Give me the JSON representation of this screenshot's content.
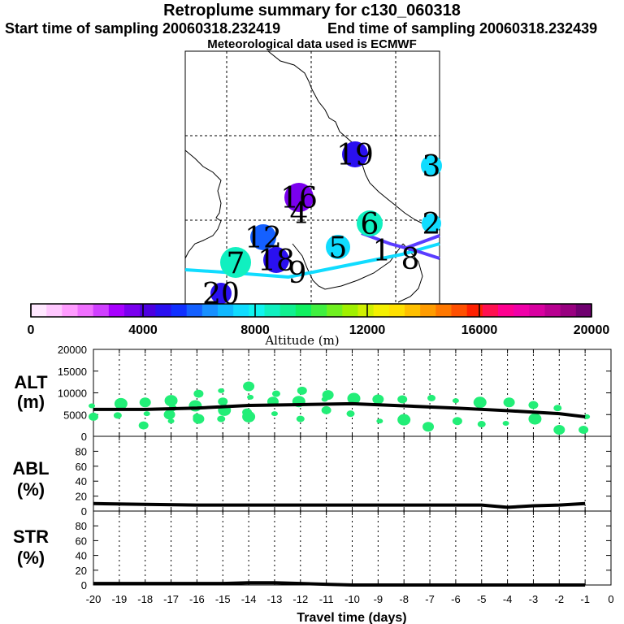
{
  "header": {
    "title": "Retroplume summary for c130_060318",
    "start_label": "Start time of sampling 20060318.232419",
    "end_label": "End time of sampling 20060318.232439",
    "met_label": "Meteorological data used is ECMWF"
  },
  "colorbar": {
    "label": "Altitude (m)",
    "ticks": [
      "0",
      "4000",
      "8000",
      "12000",
      "16000",
      "20000"
    ],
    "colors": [
      "#ffe8ff",
      "#ffc8ff",
      "#ff9cff",
      "#f070ff",
      "#d040ff",
      "#a800ff",
      "#7a00ee",
      "#4c00e0",
      "#2a10f0",
      "#1030ff",
      "#1460ff",
      "#1890ff",
      "#10b8ff",
      "#10dcff",
      "#10f4f0",
      "#10f0c0",
      "#10f090",
      "#10f060",
      "#40f040",
      "#70f020",
      "#a0f000",
      "#d0f000",
      "#f4f000",
      "#ffe000",
      "#ffc000",
      "#ff9c00",
      "#ff7800",
      "#ff5000",
      "#ff2000",
      "#ff1050",
      "#ff0090",
      "#f000a8",
      "#d800a0",
      "#b80090",
      "#980080",
      "#700070"
    ]
  },
  "map": {
    "labels": [
      {
        "text": "19",
        "color": "#2a10f0"
      },
      {
        "text": "3",
        "color": "#10dcff"
      },
      {
        "text": "16",
        "color": "#7a00ee"
      },
      {
        "text": "4",
        "color": "#7a00ee"
      },
      {
        "text": "6",
        "color": "#10f0c0"
      },
      {
        "text": "2",
        "color": "#10dcff"
      },
      {
        "text": "12",
        "color": "#1460ff"
      },
      {
        "text": "5",
        "color": "#10dcff"
      },
      {
        "text": "1",
        "color": "#e0b0ff"
      },
      {
        "text": "8",
        "color": "#5a3cff"
      },
      {
        "text": "7",
        "color": "#10f0c0"
      },
      {
        "text": "18",
        "color": "#2a10f0"
      },
      {
        "text": "9",
        "color": "#10dcff"
      },
      {
        "text": "20",
        "color": "#2a10f0"
      }
    ]
  },
  "chart_data": [
    {
      "type": "scatter",
      "name": "ALT",
      "ylabel": "ALT\n(m)",
      "ylabel_lines": [
        "ALT",
        "(m)"
      ],
      "ylim": [
        0,
        20000
      ],
      "yticks": [
        "0",
        "5000",
        "10000",
        "15000",
        "20000"
      ],
      "xlim": [
        -20,
        0
      ],
      "points_x": [
        -20,
        -20,
        -19,
        -19,
        -18,
        -18,
        -18,
        -17,
        -17,
        -17,
        -17,
        -16,
        -16,
        -16,
        -16,
        -15,
        -15,
        -15,
        -15,
        -14,
        -14,
        -14,
        -14,
        -13,
        -13,
        -13,
        -12,
        -12,
        -12,
        -11,
        -11,
        -11,
        -10,
        -10,
        -9,
        -9,
        -8,
        -8,
        -7,
        -7,
        -6,
        -6,
        -5,
        -5,
        -4,
        -4,
        -3,
        -3,
        -2,
        -2,
        -1,
        -1
      ],
      "points_y": [
        7000,
        4500,
        7500,
        4800,
        7800,
        5200,
        2500,
        8200,
        6500,
        5000,
        3500,
        9800,
        7000,
        4500,
        4000,
        10500,
        8000,
        6000,
        4000,
        11500,
        9000,
        5500,
        4500,
        9800,
        8000,
        5200,
        10500,
        8000,
        4000,
        9500,
        8500,
        6000,
        8700,
        5200,
        8500,
        3500,
        8500,
        3800,
        8800,
        2200,
        8200,
        3500,
        7800,
        2800,
        7800,
        3000,
        7200,
        4000,
        6500,
        1500,
        4500,
        1500
      ],
      "median_line_x": [
        -20,
        -18,
        -16,
        -14,
        -12,
        -10,
        -8,
        -6,
        -4,
        -2,
        -1
      ],
      "median_line_y": [
        6200,
        6200,
        6500,
        7100,
        7300,
        7500,
        7000,
        6500,
        5900,
        5200,
        4500
      ],
      "point_color": "#22ee77"
    },
    {
      "type": "line",
      "name": "ABL",
      "ylabel_lines": [
        "ABL",
        "(%)"
      ],
      "ylim": [
        0,
        100
      ],
      "yticks": [
        "0",
        "20",
        "40",
        "60",
        "80"
      ],
      "x": [
        -20,
        -18,
        -16,
        -14,
        -12,
        -10,
        -8,
        -6,
        -5,
        -4,
        -3,
        -2,
        -1
      ],
      "y": [
        10,
        9,
        8,
        8,
        8,
        8,
        8,
        8,
        8,
        5,
        7,
        8,
        10
      ]
    },
    {
      "type": "line",
      "name": "STR",
      "ylabel_lines": [
        "STR",
        "(%)"
      ],
      "ylim": [
        0,
        100
      ],
      "yticks": [
        "0",
        "20",
        "40",
        "60",
        "80"
      ],
      "x": [
        -20,
        -17,
        -15,
        -14,
        -13,
        -12,
        -11,
        -10,
        -5,
        -1
      ],
      "y": [
        2,
        2,
        2,
        3,
        3,
        2,
        1,
        0,
        0,
        0
      ],
      "xlabel": "Travel time (days)",
      "xticks": [
        "-20",
        "-19",
        "-18",
        "-17",
        "-16",
        "-15",
        "-14",
        "-13",
        "-12",
        "-11",
        "-10",
        "-9",
        "-8",
        "-7",
        "-6",
        "-5",
        "-4",
        "-3",
        "-2",
        "-1",
        "0"
      ]
    }
  ]
}
